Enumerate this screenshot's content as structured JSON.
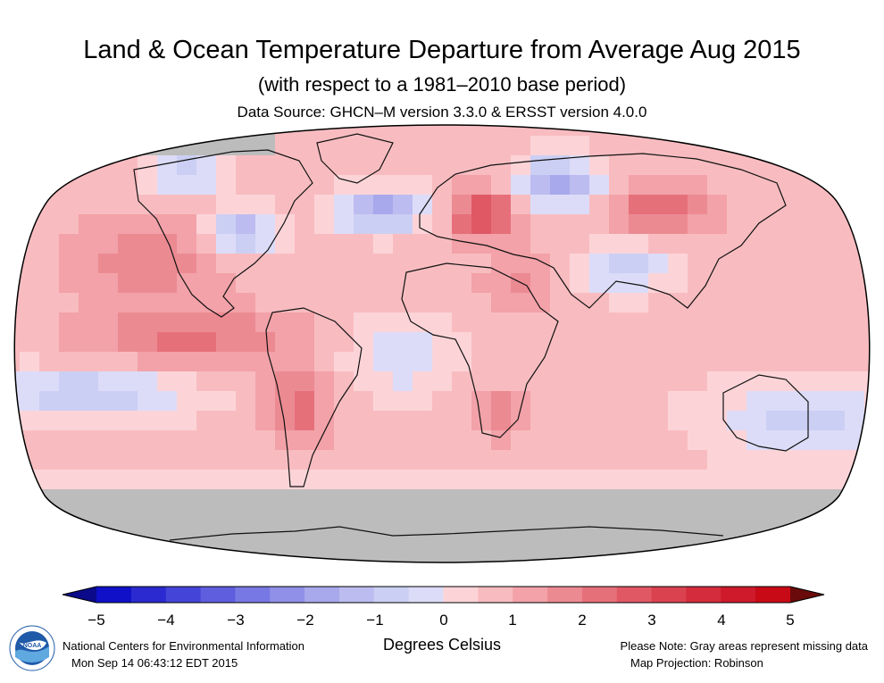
{
  "title": "Land & Ocean Temperature Departure from Average Aug 2015",
  "subtitle": "(with respect to a 1981–2010 base period)",
  "source": "Data Source: GHCN–M version 3.3.0 & ERSST version 4.0.0",
  "scale": {
    "ticks": [
      "−5",
      "−4",
      "−3",
      "−2",
      "−1",
      "0",
      "1",
      "2",
      "3",
      "4",
      "5"
    ],
    "units": "Degrees Celsius",
    "min": -5,
    "max": 5,
    "step": 0.5,
    "colors": [
      "#1010c8",
      "#2a2ad0",
      "#4444d8",
      "#5e5edf",
      "#7878e4",
      "#9090e8",
      "#a8a8ec",
      "#bcbcf0",
      "#cccff4",
      "#dcdcf8",
      "#fcd4d8",
      "#f8bcc0",
      "#f2a2a8",
      "#ec8a92",
      "#e6707a",
      "#e05864",
      "#da4250",
      "#d42c3c",
      "#ce1a2a",
      "#c80a16"
    ],
    "missing_color": "#bcbcbc"
  },
  "footer": {
    "institution": "National Centers for Environmental Information",
    "timestamp": "Mon Sep 14 06:43:12 EDT 2015",
    "note": "Please Note: Gray areas represent missing data",
    "projection": "Map Projection: Robinson"
  },
  "logo": {
    "text": "NOAA"
  }
}
